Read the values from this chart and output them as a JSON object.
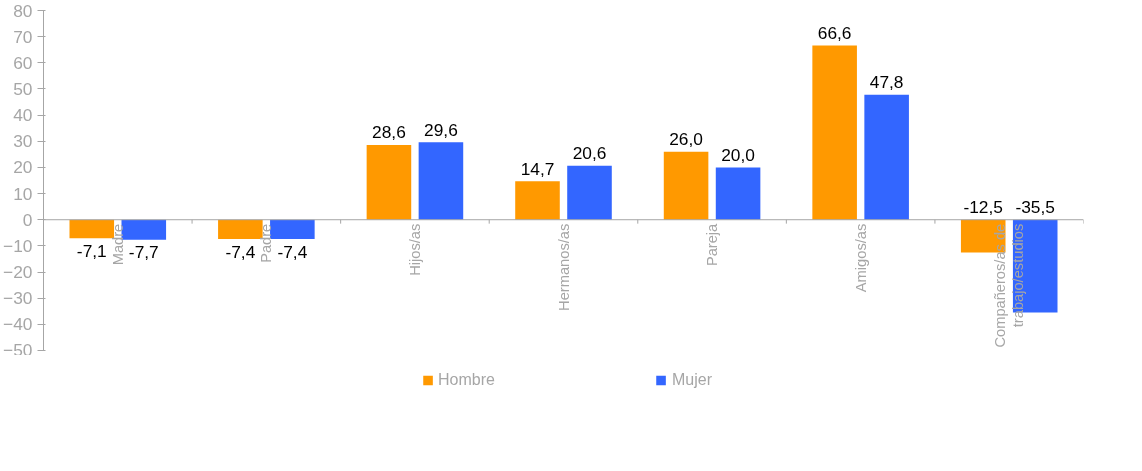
{
  "chart_data": {
    "type": "bar",
    "categories": [
      "Madre",
      "Padre",
      "Hijos/as",
      "Hermanos/as",
      "Pareja",
      "Amigos/as",
      "Compañeros/as de trabajo/estudios"
    ],
    "series": [
      {
        "name": "Hombre",
        "color": "#ff9900",
        "values": [
          -7.1,
          -7.4,
          28.6,
          14.7,
          26.0,
          66.6,
          -12.5
        ],
        "value_labels": [
          "-7,1",
          "-7,4",
          "28,6",
          "14,7",
          "26,0",
          "66,6",
          "-12,5"
        ]
      },
      {
        "name": "Mujer",
        "color": "#3366ff",
        "values": [
          -7.7,
          -7.4,
          29.6,
          20.6,
          20.0,
          47.8,
          -35.5
        ],
        "value_labels": [
          "-7,7",
          "-7,4",
          "29,6",
          "20,6",
          "20,0",
          "47,8",
          "-35,5"
        ]
      }
    ],
    "ylim": [
      -50,
      80
    ],
    "yticks": [
      -50,
      -40,
      -30,
      -20,
      -10,
      0,
      10,
      20,
      30,
      40,
      50,
      60,
      70,
      80
    ],
    "grid": false,
    "legend": "bottom"
  }
}
